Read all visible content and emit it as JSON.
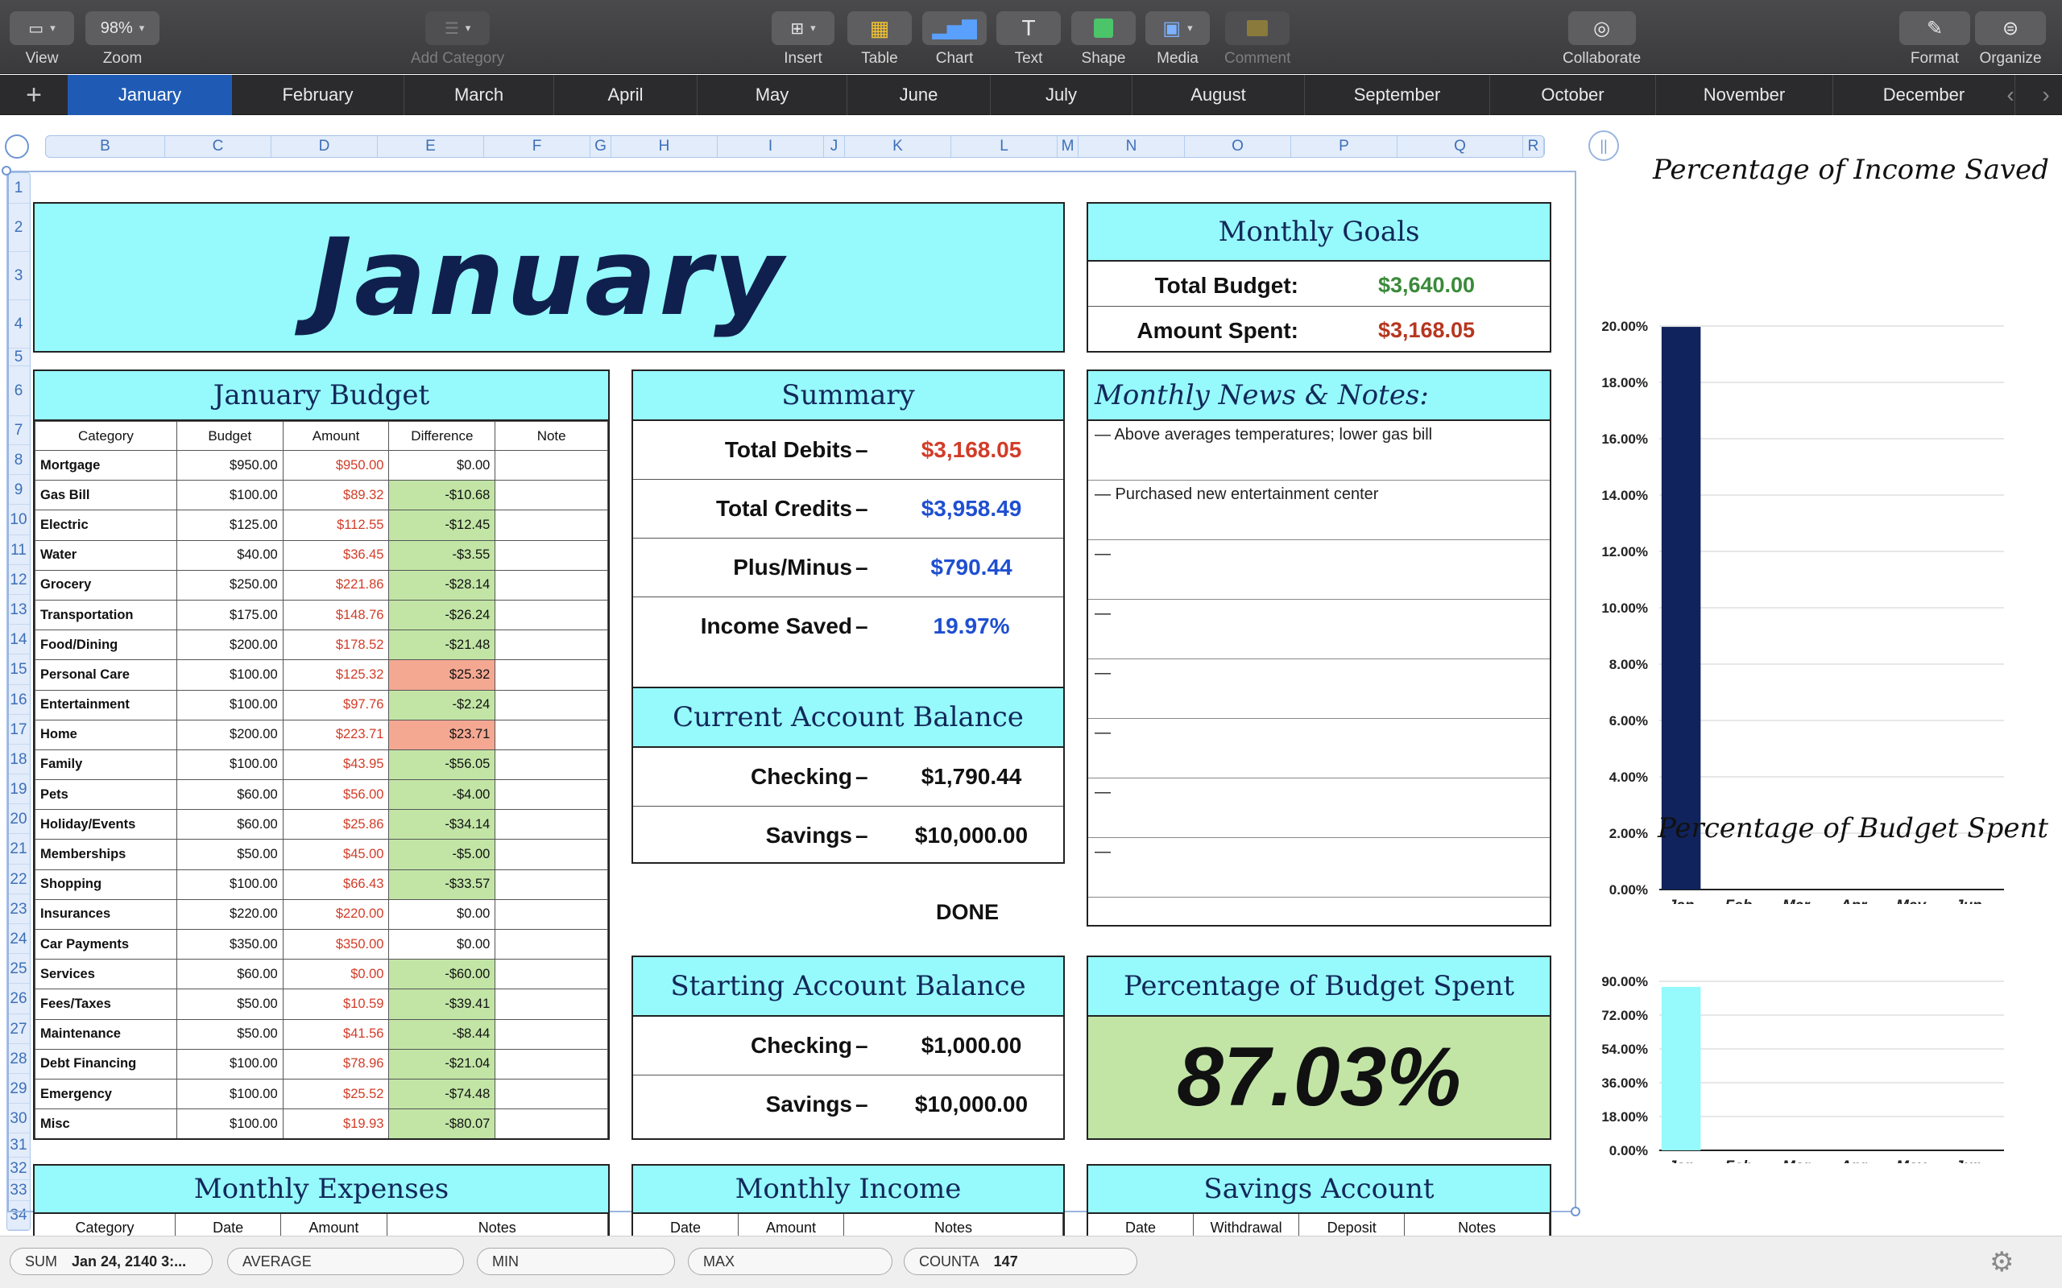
{
  "toolbar": {
    "view": "View",
    "zoom": "Zoom",
    "zoom_value": "98%",
    "add_category": "Add Category",
    "insert": "Insert",
    "table": "Table",
    "chart": "Chart",
    "text": "Text",
    "shape": "Shape",
    "media": "Media",
    "comment": "Comment",
    "collaborate": "Collaborate",
    "format": "Format",
    "organize": "Organize"
  },
  "tabs": [
    "January",
    "February",
    "March",
    "April",
    "May",
    "June",
    "July",
    "August",
    "September",
    "October",
    "November",
    "December"
  ],
  "active_tab": "January",
  "columns": [
    "B",
    "C",
    "D",
    "E",
    "F",
    "G",
    "H",
    "I",
    "J",
    "K",
    "L",
    "M",
    "N",
    "O",
    "P",
    "Q",
    "R"
  ],
  "rows": [
    "1",
    "2",
    "3",
    "4",
    "5",
    "6",
    "7",
    "8",
    "9",
    "10",
    "11",
    "12",
    "13",
    "14",
    "15",
    "16",
    "17",
    "18",
    "19",
    "20",
    "21",
    "22",
    "23",
    "24",
    "25",
    "26",
    "27",
    "28",
    "29",
    "30",
    "31",
    "32",
    "33",
    "34"
  ],
  "title": "January",
  "budget": {
    "title": "January Budget",
    "headers": [
      "Category",
      "Budget",
      "Amount",
      "Difference",
      "Note"
    ],
    "rows": [
      {
        "cat": "Mortgage",
        "budget": "$950.00",
        "amount": "$950.00",
        "diff": "$0.00",
        "flag": "none"
      },
      {
        "cat": "Gas Bill",
        "budget": "$100.00",
        "amount": "$89.32",
        "diff": "-$10.68",
        "flag": "green"
      },
      {
        "cat": "Electric",
        "budget": "$125.00",
        "amount": "$112.55",
        "diff": "-$12.45",
        "flag": "green"
      },
      {
        "cat": "Water",
        "budget": "$40.00",
        "amount": "$36.45",
        "diff": "-$3.55",
        "flag": "green"
      },
      {
        "cat": "Grocery",
        "budget": "$250.00",
        "amount": "$221.86",
        "diff": "-$28.14",
        "flag": "green"
      },
      {
        "cat": "Transportation",
        "budget": "$175.00",
        "amount": "$148.76",
        "diff": "-$26.24",
        "flag": "green"
      },
      {
        "cat": "Food/Dining",
        "budget": "$200.00",
        "amount": "$178.52",
        "diff": "-$21.48",
        "flag": "green"
      },
      {
        "cat": "Personal Care",
        "budget": "$100.00",
        "amount": "$125.32",
        "diff": "$25.32",
        "flag": "red"
      },
      {
        "cat": "Entertainment",
        "budget": "$100.00",
        "amount": "$97.76",
        "diff": "-$2.24",
        "flag": "green"
      },
      {
        "cat": "Home",
        "budget": "$200.00",
        "amount": "$223.71",
        "diff": "$23.71",
        "flag": "red"
      },
      {
        "cat": "Family",
        "budget": "$100.00",
        "amount": "$43.95",
        "diff": "-$56.05",
        "flag": "green"
      },
      {
        "cat": "Pets",
        "budget": "$60.00",
        "amount": "$56.00",
        "diff": "-$4.00",
        "flag": "green"
      },
      {
        "cat": "Holiday/Events",
        "budget": "$60.00",
        "amount": "$25.86",
        "diff": "-$34.14",
        "flag": "green"
      },
      {
        "cat": "Memberships",
        "budget": "$50.00",
        "amount": "$45.00",
        "diff": "-$5.00",
        "flag": "green"
      },
      {
        "cat": "Shopping",
        "budget": "$100.00",
        "amount": "$66.43",
        "diff": "-$33.57",
        "flag": "green"
      },
      {
        "cat": "Insurances",
        "budget": "$220.00",
        "amount": "$220.00",
        "diff": "$0.00",
        "flag": "none"
      },
      {
        "cat": "Car Payments",
        "budget": "$350.00",
        "amount": "$350.00",
        "diff": "$0.00",
        "flag": "none"
      },
      {
        "cat": "Services",
        "budget": "$60.00",
        "amount": "$0.00",
        "diff": "-$60.00",
        "flag": "green"
      },
      {
        "cat": "Fees/Taxes",
        "budget": "$50.00",
        "amount": "$10.59",
        "diff": "-$39.41",
        "flag": "green"
      },
      {
        "cat": "Maintenance",
        "budget": "$50.00",
        "amount": "$41.56",
        "diff": "-$8.44",
        "flag": "green"
      },
      {
        "cat": "Debt Financing",
        "budget": "$100.00",
        "amount": "$78.96",
        "diff": "-$21.04",
        "flag": "green"
      },
      {
        "cat": "Emergency",
        "budget": "$100.00",
        "amount": "$25.52",
        "diff": "-$74.48",
        "flag": "green"
      },
      {
        "cat": "Misc",
        "budget": "$100.00",
        "amount": "$19.93",
        "diff": "-$80.07",
        "flag": "green"
      }
    ]
  },
  "summary": {
    "title": "Summary",
    "rows": [
      {
        "label": "Total Debits",
        "dash": "–",
        "value": "$3,168.05",
        "color": "#d23c28"
      },
      {
        "label": "Total Credits",
        "dash": "–",
        "value": "$3,958.49",
        "color": "#1f4fd1"
      },
      {
        "label": "Plus/Minus",
        "dash": "–",
        "value": "$790.44",
        "color": "#1f4fd1"
      },
      {
        "label": "Income Saved",
        "dash": "–",
        "value": "19.97%",
        "color": "#1f4fd1"
      }
    ]
  },
  "current_balance": {
    "title": "Current Account Balance",
    "rows": [
      {
        "label": "Checking",
        "dash": "–",
        "value": "$1,790.44"
      },
      {
        "label": "Savings",
        "dash": "–",
        "value": "$10,000.00"
      }
    ]
  },
  "done_label": "DONE",
  "starting_balance": {
    "title": "Starting Account Balance",
    "rows": [
      {
        "label": "Checking",
        "dash": "–",
        "value": "$1,000.00"
      },
      {
        "label": "Savings",
        "dash": "–",
        "value": "$10,000.00"
      }
    ]
  },
  "goals": {
    "title": "Monthly Goals",
    "rows": [
      {
        "label": "Total Budget:",
        "value": "$3,640.00",
        "color": "#3a8a3a"
      },
      {
        "label": "Amount Spent:",
        "value": "$3,168.05",
        "color": "#b7361f"
      }
    ]
  },
  "notes": {
    "title": "Monthly News & Notes:",
    "items": [
      "— Above averages temperatures; lower gas bill",
      "— Purchased new entertainment center",
      "—",
      "—",
      "—",
      "—",
      "—",
      "—"
    ]
  },
  "budget_spent": {
    "title": "Percentage of Budget Spent",
    "value": "87.03%"
  },
  "bottom_tables": {
    "expenses": {
      "title": "Monthly Expenses",
      "headers": [
        "Category",
        "Date",
        "Amount",
        "Notes"
      ]
    },
    "income": {
      "title": "Monthly Income",
      "headers": [
        "Date",
        "Amount",
        "Notes"
      ]
    },
    "savings": {
      "title": "Savings Account",
      "headers": [
        "Date",
        "Withdrawal",
        "Deposit",
        "Notes"
      ]
    }
  },
  "chart_data": [
    {
      "type": "bar",
      "title": "Percentage of Income Saved",
      "categories": [
        "Jan",
        "Feb",
        "Mar",
        "Apr",
        "May",
        "Jun"
      ],
      "values": [
        19.97,
        0,
        0,
        0,
        0,
        0
      ],
      "ylim": [
        0,
        20
      ],
      "yticks": [
        "0.00%",
        "2.00%",
        "4.00%",
        "6.00%",
        "8.00%",
        "10.00%",
        "12.00%",
        "14.00%",
        "16.00%",
        "18.00%",
        "20.00%"
      ],
      "grid": true,
      "color": "#10235c"
    },
    {
      "type": "bar",
      "title": "Percentage of Budget Spent",
      "categories": [
        "Jan",
        "Feb",
        "Mar",
        "Apr",
        "May",
        "Jun"
      ],
      "values": [
        87.03,
        0,
        0,
        0,
        0,
        0
      ],
      "ylim": [
        0,
        90
      ],
      "yticks": [
        "0.00%",
        "18.00%",
        "36.00%",
        "54.00%",
        "72.00%",
        "90.00%"
      ],
      "grid": true,
      "color": "#96f9fb"
    }
  ],
  "status": {
    "sum_label": "SUM",
    "sum_value": "Jan 24, 2140 3:...",
    "average_label": "AVERAGE",
    "min_label": "MIN",
    "max_label": "MAX",
    "counta_label": "COUNTA",
    "counta_value": "147"
  }
}
